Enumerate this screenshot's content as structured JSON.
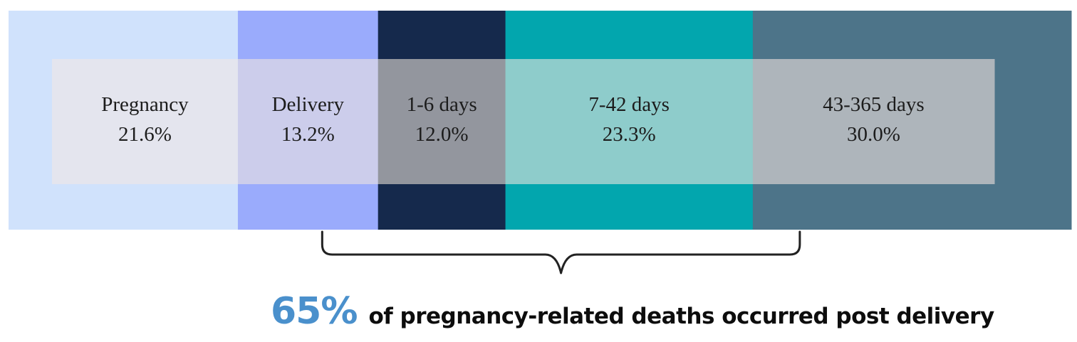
{
  "chart_data": {
    "type": "bar",
    "orientation": "horizontal-stacked",
    "unit": "%",
    "segments": [
      {
        "name": "Pregnancy",
        "value": 21.6,
        "label": "21.6%",
        "color": "#d0e2fc",
        "overlay": "#e4e5ee"
      },
      {
        "name": "Delivery",
        "value": 13.2,
        "label": "13.2%",
        "color": "#9aabfc",
        "overlay": "#cccdeb"
      },
      {
        "name": "1-6 days",
        "value": 12.0,
        "label": "12.0%",
        "color": "#15294c",
        "overlay": "#93969e"
      },
      {
        "name": "7-42 days",
        "value": 23.3,
        "label": "23.3%",
        "color": "#02a6ae",
        "overlay": "#8ecccb"
      },
      {
        "name": "43-365 days",
        "value": 30.0,
        "label": "30.0%",
        "color": "#4d7489",
        "overlay": "#aeb5bb"
      }
    ],
    "bracket": {
      "from_segment": 1,
      "to_segment": 4
    },
    "annotation": {
      "value": "65%",
      "text": "of pregnancy-related deaths occurred post delivery",
      "value_color": "#4a90cc"
    }
  }
}
